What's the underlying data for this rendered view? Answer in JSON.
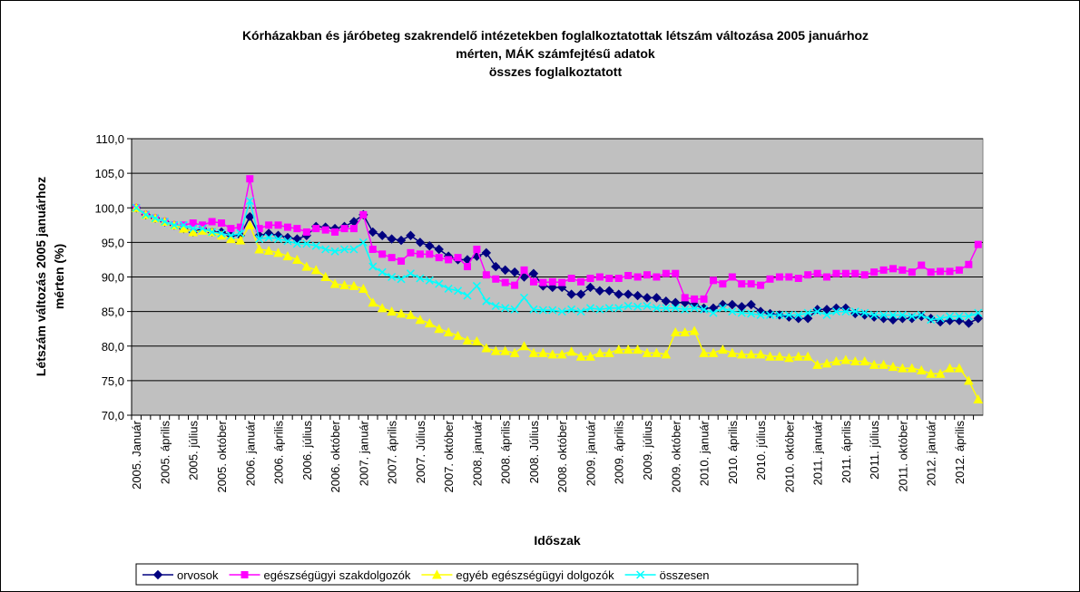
{
  "chart_data": {
    "type": "line",
    "title": [
      "Kórházakban és járóbeteg szakrendelő intézetekben foglalkoztatottak létszám változása 2005 januárhoz",
      "mérten, MÁK számfejtésű adatok",
      "összes foglalkoztatott"
    ],
    "ylabel": [
      "Létszám változás 2005 januárhoz",
      "mérten (%)"
    ],
    "xlabel": "Időszak",
    "categories": [
      "2005. Január",
      null,
      null,
      "2005. április",
      null,
      null,
      "2005. július",
      null,
      null,
      "2005. október",
      null,
      null,
      "2006. január",
      null,
      null,
      "2006. április",
      null,
      null,
      "2006. július",
      null,
      null,
      "2006. október",
      null,
      null,
      "2007. január",
      null,
      null,
      "2007. április",
      null,
      null,
      "2007. Július",
      null,
      null,
      "2007. október",
      null,
      null,
      "2008. január",
      null,
      null,
      "2008. április",
      null,
      null,
      "2008. Július",
      null,
      null,
      "2008. október",
      null,
      null,
      "2009. január",
      null,
      null,
      "2009. április",
      null,
      null,
      "2009. július",
      null,
      null,
      "2009. október",
      null,
      null,
      "2010. január",
      null,
      null,
      "2010. április",
      null,
      null,
      "2010. július",
      null,
      null,
      "2010. október",
      null,
      null,
      "2011. január",
      null,
      null,
      "2011. április",
      null,
      null,
      "2011. július",
      null,
      null,
      "2011. október",
      null,
      null,
      "2012. január",
      null,
      null,
      "2012. április",
      null,
      null
    ],
    "series": [
      {
        "name": "orvosok",
        "color": "#000080",
        "marker": "diamond",
        "values": [
          100,
          99,
          98.5,
          98,
          97.5,
          97,
          96.5,
          97,
          96.5,
          96.5,
          96,
          96,
          98.7,
          96,
          96.3,
          96,
          95.7,
          95.5,
          96,
          97.3,
          97.2,
          97,
          97.3,
          98,
          99,
          96.5,
          96,
          95.5,
          95.3,
          96,
          95,
          94.5,
          94,
          93,
          92.5,
          92.5,
          93,
          93.5,
          91.5,
          91,
          90.7,
          90,
          90.5,
          88.7,
          88.5,
          88.5,
          87.5,
          87.5,
          88.5,
          88,
          88,
          87.5,
          87.5,
          87.3,
          87,
          87,
          86.5,
          86.3,
          86.3,
          86,
          85.5,
          85.5,
          86,
          86,
          85.7,
          86,
          85,
          84.7,
          84.5,
          84.2,
          84,
          84,
          85.3,
          85.3,
          85.5,
          85.5,
          84.7,
          84.5,
          84.2,
          84,
          83.8,
          84,
          84,
          84.3,
          84,
          83.5,
          83.7,
          83.7,
          83.3,
          84
        ]
      },
      {
        "name": "egészségügyi szakdolgozók",
        "color": "#ff00ff",
        "marker": "square",
        "values": [
          100,
          99,
          98.5,
          98,
          97.5,
          97.5,
          97.8,
          97.5,
          98,
          97.8,
          97,
          97.2,
          104.2,
          97,
          97.5,
          97.5,
          97.2,
          97,
          96.5,
          97,
          96.8,
          96.5,
          97,
          97,
          99,
          94,
          93.3,
          92.8,
          92.3,
          93.5,
          93.3,
          93.3,
          92.8,
          92.5,
          92.8,
          91.5,
          94,
          90.3,
          89.7,
          89.2,
          88.8,
          91,
          89.3,
          89.2,
          89.3,
          89.2,
          89.8,
          89.3,
          89.8,
          90,
          89.8,
          89.8,
          90.2,
          90,
          90.3,
          90,
          90.5,
          90.5,
          87,
          86.8,
          86.8,
          89.5,
          89,
          90,
          89,
          89,
          88.8,
          89.7,
          90,
          90,
          89.8,
          90.3,
          90.5,
          90,
          90.5,
          90.5,
          90.5,
          90.3,
          90.7,
          91,
          91.2,
          91,
          90.7,
          91.7,
          90.7,
          90.8,
          90.8,
          91,
          91.8,
          94.7
        ]
      },
      {
        "name": "egyéb egészségügyi dolgozók",
        "color": "#ffff00",
        "marker": "triangle",
        "values": [
          100,
          99,
          98.5,
          98,
          97.5,
          97,
          96.5,
          96.7,
          96.5,
          96,
          95.5,
          95.3,
          97.5,
          94,
          93.8,
          93.5,
          93,
          92.5,
          91.5,
          91,
          90,
          89,
          88.8,
          88.7,
          88.3,
          86.3,
          85.5,
          85,
          84.7,
          84.5,
          83.8,
          83.3,
          82.5,
          82,
          81.5,
          80.8,
          80.7,
          79.7,
          79.3,
          79.3,
          79,
          80,
          79,
          79,
          78.8,
          78.8,
          79.2,
          78.5,
          78.5,
          79,
          79,
          79.5,
          79.5,
          79.5,
          79,
          79,
          78.8,
          82,
          82,
          82.2,
          79,
          79,
          79.5,
          79,
          78.8,
          78.8,
          78.8,
          78.5,
          78.5,
          78.3,
          78.5,
          78.5,
          77.3,
          77.5,
          77.8,
          78,
          77.8,
          77.8,
          77.3,
          77.3,
          77,
          76.8,
          76.8,
          76.5,
          76,
          76,
          76.8,
          76.8,
          75,
          72.3
        ]
      },
      {
        "name": "összesen",
        "color": "#00ffff",
        "marker": "x",
        "values": [
          100,
          99,
          98.5,
          98,
          97.5,
          97.5,
          97,
          97,
          96.5,
          96.3,
          96,
          96.3,
          101,
          95.5,
          95.7,
          95.5,
          95.2,
          94.8,
          94.8,
          94.5,
          94,
          93.7,
          94,
          94,
          95,
          91.5,
          90.7,
          90,
          89.7,
          90.5,
          89.8,
          89.5,
          89,
          88.3,
          88,
          87.3,
          88.7,
          86.5,
          85.8,
          85.5,
          85.3,
          87,
          85.3,
          85.2,
          85.2,
          85,
          85.3,
          85,
          85.5,
          85.3,
          85.5,
          85.5,
          85.8,
          85.7,
          85.8,
          85.5,
          85.5,
          85.5,
          85.3,
          85.5,
          85.3,
          84.8,
          85.5,
          85,
          84.8,
          84.7,
          84.5,
          84.5,
          84.5,
          84.5,
          84.5,
          84.8,
          85,
          84.5,
          85,
          85,
          85,
          84.8,
          84.5,
          84.5,
          84.5,
          84.5,
          84.3,
          84.5,
          83.8,
          84,
          84.3,
          84.3,
          84.3,
          84.8
        ]
      }
    ],
    "ylim": [
      70,
      110
    ],
    "yticks": [
      {
        "value": 70,
        "label": "70,0"
      },
      {
        "value": 75,
        "label": "75,0"
      },
      {
        "value": 80,
        "label": "80,0"
      },
      {
        "value": 85,
        "label": "85,0"
      },
      {
        "value": 90,
        "label": "90,0"
      },
      {
        "value": 95,
        "label": "95,0"
      },
      {
        "value": 100,
        "label": "100,0"
      },
      {
        "value": 105,
        "label": "105,0"
      },
      {
        "value": 110,
        "label": "110,0"
      }
    ],
    "grid": true,
    "plot_background": "#c0c0c0",
    "legend": "bottom"
  }
}
